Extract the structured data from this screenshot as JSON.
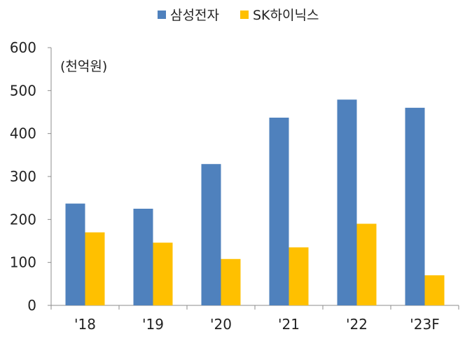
{
  "chart_data": {
    "type": "bar",
    "categories": [
      "'18",
      "'19",
      "'20",
      "'21",
      "'22",
      "'23F"
    ],
    "series": [
      {
        "name": "삼성전자",
        "color": "#4f81bd",
        "values": [
          237,
          225,
          329,
          437,
          479,
          460
        ]
      },
      {
        "name": "SK하이닉스",
        "color": "#ffc000",
        "values": [
          170,
          146,
          108,
          135,
          190,
          70
        ]
      }
    ],
    "unit_label": "(천억원)",
    "ylim": [
      0,
      600
    ],
    "yticks": [
      0,
      100,
      200,
      300,
      400,
      500,
      600
    ],
    "grid": false,
    "legend_position": "top-center"
  }
}
